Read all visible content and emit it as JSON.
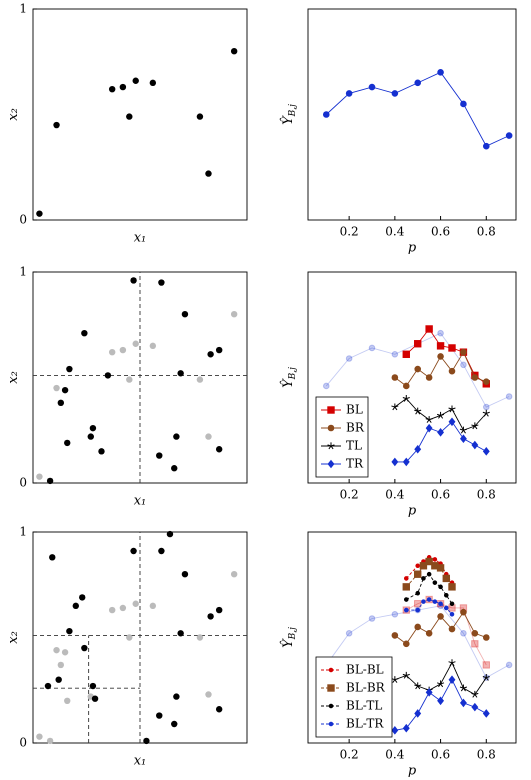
{
  "chart_data": [
    {
      "type": "scatter",
      "x_label": "x₁",
      "y_label": "x₂",
      "xlim": [
        0,
        1
      ],
      "ylim": [
        0,
        1
      ],
      "yticks": [
        0,
        1
      ],
      "series": [
        {
          "color": "#000000",
          "x": [
            0.03,
            0.11,
            0.37,
            0.42,
            0.48,
            0.45,
            0.56,
            0.78,
            0.82,
            0.94
          ],
          "values": [
            0.03,
            0.45,
            0.62,
            0.63,
            0.66,
            0.49,
            0.65,
            0.49,
            0.22,
            0.8
          ]
        }
      ],
      "splits": []
    },
    {
      "type": "line",
      "x_label": "p",
      "y_label": "Ŷ",
      "y_label_sub": "B,j",
      "xlim": [
        0.02,
        0.93
      ],
      "ylim": [
        0,
        1
      ],
      "xticks": [
        0.2,
        0.4,
        0.6,
        0.8
      ],
      "series": [
        {
          "color": "#1530d0",
          "marker": "circle",
          "x": [
            0.1,
            0.2,
            0.3,
            0.4,
            0.5,
            0.6,
            0.7,
            0.8,
            0.9
          ],
          "values": [
            0.5,
            0.6,
            0.63,
            0.6,
            0.65,
            0.7,
            0.55,
            0.35,
            0.4
          ]
        }
      ]
    },
    {
      "type": "scatter",
      "x_label": "x₁",
      "y_label": "x₂",
      "xlim": [
        0,
        1
      ],
      "ylim": [
        0,
        1
      ],
      "yticks": [
        0,
        1
      ],
      "series": [
        {
          "color": "#bbbbbb",
          "x": [
            0.03,
            0.11,
            0.37,
            0.42,
            0.48,
            0.45,
            0.56,
            0.78,
            0.82,
            0.94
          ],
          "values": [
            0.03,
            0.45,
            0.62,
            0.63,
            0.66,
            0.49,
            0.65,
            0.49,
            0.22,
            0.8
          ]
        },
        {
          "color": "#000000",
          "x": [
            0.24,
            0.17,
            0.35,
            0.15,
            0.13,
            0.28,
            0.27,
            0.16,
            0.32,
            0.08,
            0.47,
            0.6,
            0.71,
            0.69,
            0.83,
            0.87,
            0.67,
            0.87,
            0.59,
            0.66
          ],
          "values": [
            0.71,
            0.54,
            0.51,
            0.44,
            0.38,
            0.26,
            0.22,
            0.19,
            0.15,
            0.01,
            0.96,
            0.95,
            0.8,
            0.52,
            0.61,
            0.63,
            0.22,
            0.16,
            0.13,
            0.07
          ]
        }
      ],
      "splits": [
        {
          "x": [
            0.5,
            0.5
          ],
          "y": [
            0,
            1
          ]
        },
        {
          "x": [
            0,
            1
          ],
          "y": [
            0.51,
            0.51
          ]
        }
      ]
    },
    {
      "type": "line",
      "x_label": "p",
      "y_label": "Ŷ",
      "y_label_sub": "B,j",
      "xlim": [
        0.02,
        0.93
      ],
      "ylim": [
        0,
        1
      ],
      "xticks": [
        0.2,
        0.4,
        0.6,
        0.8
      ],
      "legend": "lower left",
      "series": [
        {
          "color": "#1530d0",
          "alpha": 0.25,
          "marker": "circle",
          "x": [
            0.1,
            0.2,
            0.3,
            0.4,
            0.5,
            0.6,
            0.7,
            0.8,
            0.9
          ],
          "values": [
            0.46,
            0.59,
            0.64,
            0.61,
            0.66,
            0.71,
            0.56,
            0.36,
            0.41
          ]
        },
        {
          "name": "BL",
          "color": "#d40000",
          "marker": "square",
          "x": [
            0.45,
            0.5,
            0.55,
            0.6,
            0.65,
            0.7,
            0.75,
            0.8
          ],
          "values": [
            0.61,
            0.66,
            0.73,
            0.65,
            0.64,
            0.62,
            0.51,
            0.47
          ]
        },
        {
          "name": "BR",
          "color": "#8b4a1c",
          "marker": "circle",
          "x": [
            0.4,
            0.45,
            0.5,
            0.55,
            0.6,
            0.65,
            0.7,
            0.75,
            0.8
          ],
          "values": [
            0.5,
            0.46,
            0.54,
            0.5,
            0.6,
            0.53,
            0.62,
            0.5,
            0.48
          ]
        },
        {
          "name": "TL",
          "color": "#000000",
          "marker": "star",
          "x": [
            0.4,
            0.45,
            0.5,
            0.55,
            0.6,
            0.65,
            0.7,
            0.75,
            0.8
          ],
          "values": [
            0.36,
            0.4,
            0.34,
            0.3,
            0.32,
            0.35,
            0.25,
            0.27,
            0.33
          ]
        },
        {
          "name": "TR",
          "color": "#1530d0",
          "marker": "diamond",
          "x": [
            0.4,
            0.45,
            0.5,
            0.55,
            0.6,
            0.65,
            0.7,
            0.75,
            0.8
          ],
          "values": [
            0.1,
            0.1,
            0.16,
            0.26,
            0.24,
            0.29,
            0.21,
            0.18,
            0.15
          ]
        }
      ]
    },
    {
      "type": "scatter",
      "x_label": "x₁",
      "y_label": "x₂",
      "xlim": [
        0,
        1
      ],
      "ylim": [
        0,
        1
      ],
      "yticks": [
        0,
        1
      ],
      "series": [
        {
          "color": "#bbbbbb",
          "x": [
            0.03,
            0.08,
            0.11,
            0.15,
            0.13,
            0.16,
            0.27,
            0.37,
            0.42,
            0.48,
            0.45,
            0.56,
            0.78,
            0.82,
            0.94
          ],
          "values": [
            0.03,
            0.01,
            0.44,
            0.43,
            0.37,
            0.2,
            0.22,
            0.63,
            0.64,
            0.66,
            0.5,
            0.65,
            0.5,
            0.23,
            0.8
          ]
        },
        {
          "color": "#000000",
          "x": [
            0.09,
            0.2,
            0.23,
            0.17,
            0.24,
            0.07,
            0.12,
            0.28,
            0.29,
            0.47,
            0.64,
            0.6,
            0.71,
            0.69,
            0.83,
            0.87,
            0.67,
            0.87,
            0.59,
            0.66,
            0.53
          ],
          "values": [
            0.88,
            0.65,
            0.69,
            0.53,
            0.45,
            0.27,
            0.3,
            0.27,
            0.21,
            0.91,
            0.99,
            0.91,
            0.8,
            0.52,
            0.6,
            0.63,
            0.22,
            0.16,
            0.13,
            0.09,
            0.01
          ]
        }
      ],
      "splits": [
        {
          "x": [
            0.5,
            0.5
          ],
          "y": [
            0,
            1
          ]
        },
        {
          "x": [
            0,
            1
          ],
          "y": [
            0.51,
            0.51
          ]
        },
        {
          "x": [
            0.26,
            0.26
          ],
          "y": [
            0,
            0.51
          ]
        },
        {
          "x": [
            0,
            0.5
          ],
          "y": [
            0.26,
            0.26
          ]
        }
      ]
    },
    {
      "type": "line",
      "x_label": "p",
      "y_label": "Ŷ",
      "y_label_sub": "B,j",
      "xlim": [
        0.02,
        0.93
      ],
      "ylim": [
        0,
        1
      ],
      "xticks": [
        0.2,
        0.4,
        0.6,
        0.8
      ],
      "legend": "lower left",
      "series": [
        {
          "color": "#1530d0",
          "alpha": 0.25,
          "marker": "circle",
          "x": [
            0.1,
            0.2,
            0.3,
            0.4,
            0.5,
            0.6,
            0.7,
            0.8,
            0.9
          ],
          "values": [
            0.37,
            0.52,
            0.59,
            0.61,
            0.63,
            0.65,
            0.52,
            0.31,
            0.37
          ]
        },
        {
          "color": "#d40000",
          "alpha": 0.3,
          "marker": "square",
          "x": [
            0.45,
            0.5,
            0.55,
            0.6,
            0.65,
            0.7,
            0.75,
            0.8
          ],
          "values": [
            0.63,
            0.66,
            0.68,
            0.66,
            0.64,
            0.64,
            0.47,
            0.37
          ]
        },
        {
          "color": "#8b4a1c",
          "marker": "circle",
          "x": [
            0.4,
            0.45,
            0.5,
            0.55,
            0.6,
            0.65,
            0.7,
            0.75,
            0.8
          ],
          "values": [
            0.51,
            0.47,
            0.55,
            0.52,
            0.6,
            0.54,
            0.62,
            0.52,
            0.5
          ]
        },
        {
          "color": "#000000",
          "marker": "star",
          "x": [
            0.4,
            0.45,
            0.5,
            0.55,
            0.6,
            0.65,
            0.7,
            0.75,
            0.8
          ],
          "values": [
            0.3,
            0.32,
            0.27,
            0.25,
            0.28,
            0.38,
            0.26,
            0.23,
            0.31
          ]
        },
        {
          "color": "#1530d0",
          "marker": "diamond",
          "x": [
            0.4,
            0.45,
            0.5,
            0.55,
            0.6,
            0.65,
            0.7,
            0.75,
            0.8
          ],
          "values": [
            0.06,
            0.07,
            0.14,
            0.24,
            0.2,
            0.3,
            0.19,
            0.17,
            0.14
          ]
        },
        {
          "name": "BL-BL",
          "color": "#d40000",
          "marker": "dot",
          "dashed": true,
          "x": [
            0.45,
            0.5,
            0.525,
            0.55,
            0.575,
            0.6,
            0.625,
            0.65
          ],
          "values": [
            0.78,
            0.84,
            0.86,
            0.88,
            0.87,
            0.85,
            0.8,
            0.76
          ]
        },
        {
          "name": "BL-BR",
          "color": "#8b4a1c",
          "marker": "square",
          "dashed": true,
          "x": [
            0.45,
            0.5,
            0.525,
            0.55,
            0.575,
            0.6,
            0.625,
            0.65
          ],
          "values": [
            0.74,
            0.8,
            0.84,
            0.86,
            0.84,
            0.83,
            0.78,
            0.74
          ]
        },
        {
          "name": "BL-TL",
          "color": "#000000",
          "marker": "dot",
          "dashed": true,
          "x": [
            0.45,
            0.5,
            0.525,
            0.55,
            0.575,
            0.6,
            0.625,
            0.65
          ],
          "values": [
            0.68,
            0.71,
            0.78,
            0.8,
            0.76,
            0.74,
            0.7,
            0.66
          ]
        },
        {
          "name": "BL-TR",
          "color": "#1530d0",
          "marker": "dot",
          "dashed": true,
          "x": [
            0.45,
            0.5,
            0.525,
            0.55,
            0.575,
            0.6,
            0.625,
            0.65
          ],
          "values": [
            0.63,
            0.63,
            0.67,
            0.68,
            0.67,
            0.66,
            0.64,
            0.61
          ]
        }
      ]
    }
  ]
}
